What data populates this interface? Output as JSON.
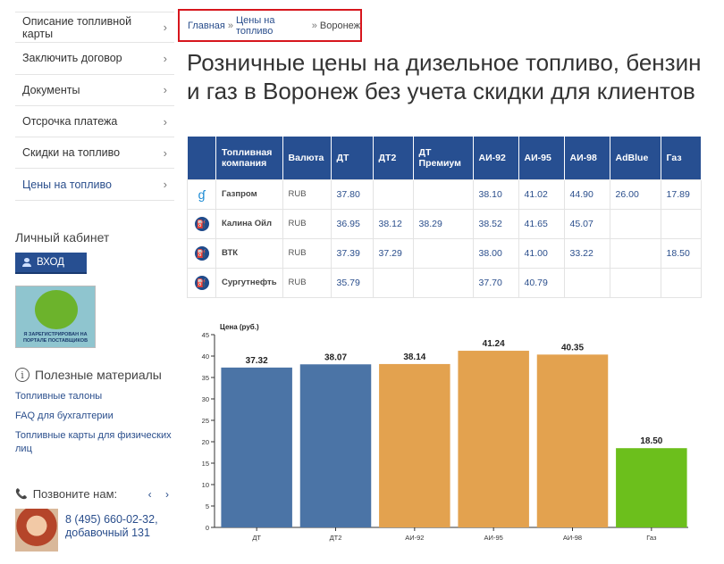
{
  "sidebar": {
    "menu": [
      {
        "label": "Описание топливной карты",
        "active": false
      },
      {
        "label": "Заключить договор",
        "active": false
      },
      {
        "label": "Документы",
        "active": false
      },
      {
        "label": "Отсрочка платежа",
        "active": false
      },
      {
        "label": "Скидки на топливо",
        "active": false
      },
      {
        "label": "Цены на топливо",
        "active": true
      }
    ],
    "chevron": "›",
    "cabinet_title": "Личный кабинет",
    "login_label": "ВХОД",
    "supplier_badge_text": "Я ЗАРЕГИСТРИРОВАН НА ПОРТАЛЕ ПОСТАВЩИКОВ",
    "useful_title": "Полезные материалы",
    "useful_links": [
      "Топливные талоны",
      "FAQ для бухгалтерии",
      "Топливные карты для физических лиц"
    ],
    "call_title": "Позвоните нам:",
    "call_arrows": "‹ ›",
    "phone_line1": "8 (495) 660-02-32,",
    "phone_line2": "добавочный 131"
  },
  "breadcrumb": {
    "home": "Главная",
    "prices": "Цены на топливо",
    "current": "Воронеж",
    "separator": "»"
  },
  "page_title": "Розничные цены на дизельное топливо, бензин и газ в Воронеж без учета скидки для клиентов",
  "table": {
    "headers": [
      "Топливная компания",
      "Валюта",
      "ДТ",
      "ДТ2",
      "ДТ Премиум",
      "АИ-92",
      "АИ-95",
      "АИ-98",
      "AdBlue",
      "Газ"
    ],
    "rows": [
      {
        "icon": "gazprom-flame-icon",
        "company": "Газпром",
        "currency": "RUB",
        "values": [
          "37.80",
          "",
          "",
          "38.10",
          "41.02",
          "44.90",
          "26.00",
          "17.89"
        ]
      },
      {
        "icon": "fuel-station-icon",
        "company": "Калина Ойл",
        "currency": "RUB",
        "values": [
          "36.95",
          "38.12",
          "38.29",
          "38.52",
          "41.65",
          "45.07",
          "",
          ""
        ]
      },
      {
        "icon": "fuel-station-icon",
        "company": "ВТК",
        "currency": "RUB",
        "values": [
          "37.39",
          "37.29",
          "",
          "38.00",
          "41.00",
          "33.22",
          "",
          "18.50"
        ]
      },
      {
        "icon": "fuel-station-icon",
        "company": "Сургутнефть",
        "currency": "RUB",
        "values": [
          "35.79",
          "",
          "",
          "37.70",
          "40.79",
          "",
          "",
          ""
        ]
      }
    ]
  },
  "chart_data": {
    "type": "bar",
    "ylabel": "Цена (руб.)",
    "categories": [
      "ДТ",
      "ДТ2",
      "АИ-92",
      "АИ-95",
      "АИ-98",
      "Газ"
    ],
    "values": [
      37.32,
      38.07,
      38.14,
      41.24,
      40.35,
      18.5
    ],
    "value_labels": [
      "37.32",
      "38.07",
      "38.14",
      "41.24",
      "40.35",
      "18.50"
    ],
    "bar_colors": [
      "#4b74a6",
      "#4b74a6",
      "#e3a24f",
      "#e3a24f",
      "#e3a24f",
      "#6cbf1c"
    ],
    "ylim": [
      0,
      45
    ],
    "yticks": [
      0,
      5,
      10,
      15,
      20,
      25,
      30,
      35,
      40,
      45
    ],
    "grid": false
  }
}
